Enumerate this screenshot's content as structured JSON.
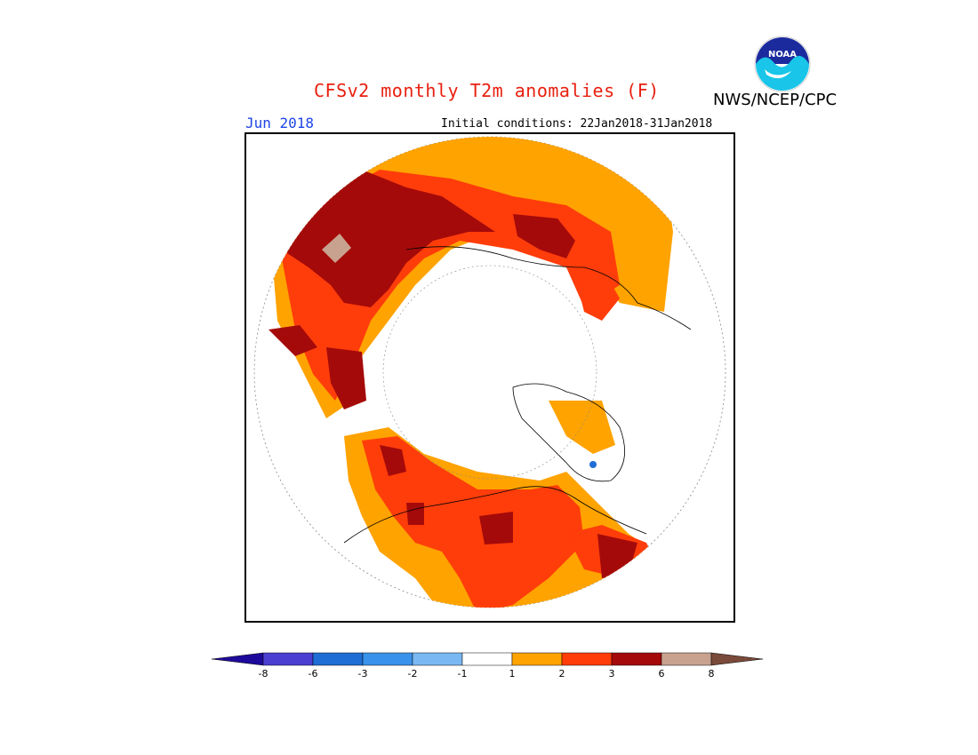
{
  "header": {
    "title": "CFSv2 monthly T2m anomalies (F)",
    "month": "Jun 2018",
    "initial_conditions": "Initial conditions: 22Jan2018-31Jan2018",
    "agency": "NWS/NCEP/CPC",
    "logo_text": "NOAA"
  },
  "map": {
    "projection": "north-polar-stereographic",
    "variable": "2m temperature anomaly",
    "units": "F",
    "regions": [
      {
        "region": "Eastern Europe / Western Russia",
        "anomaly_class": "6 to 8"
      },
      {
        "region": "Central Russia",
        "anomaly_class": "3 to 6"
      },
      {
        "region": "Western Canada / Pacific Northwest",
        "anomaly_class": "3 to 6"
      },
      {
        "region": "Central Canada / Northern US",
        "anomaly_class": "2 to 3"
      },
      {
        "region": "Eastern Canada",
        "anomaly_class": "3 to 6"
      },
      {
        "region": "Greenland",
        "anomaly_class": "1 to 2"
      },
      {
        "region": "Southern Greenland spot",
        "anomaly_class": "-3 to -2"
      }
    ]
  },
  "colorbar": {
    "labels": [
      "-8",
      "-6",
      "-3",
      "-2",
      "-1",
      "1",
      "2",
      "3",
      "6",
      "8"
    ],
    "colors": [
      "#1e0a9a",
      "#4a3fd1",
      "#1f6ed6",
      "#3a93ea",
      "#79b8f2",
      "#ffffff",
      "#ffa300",
      "#ff3d0a",
      "#a50a0a",
      "#c8a28f",
      "#7a4a3a"
    ]
  }
}
